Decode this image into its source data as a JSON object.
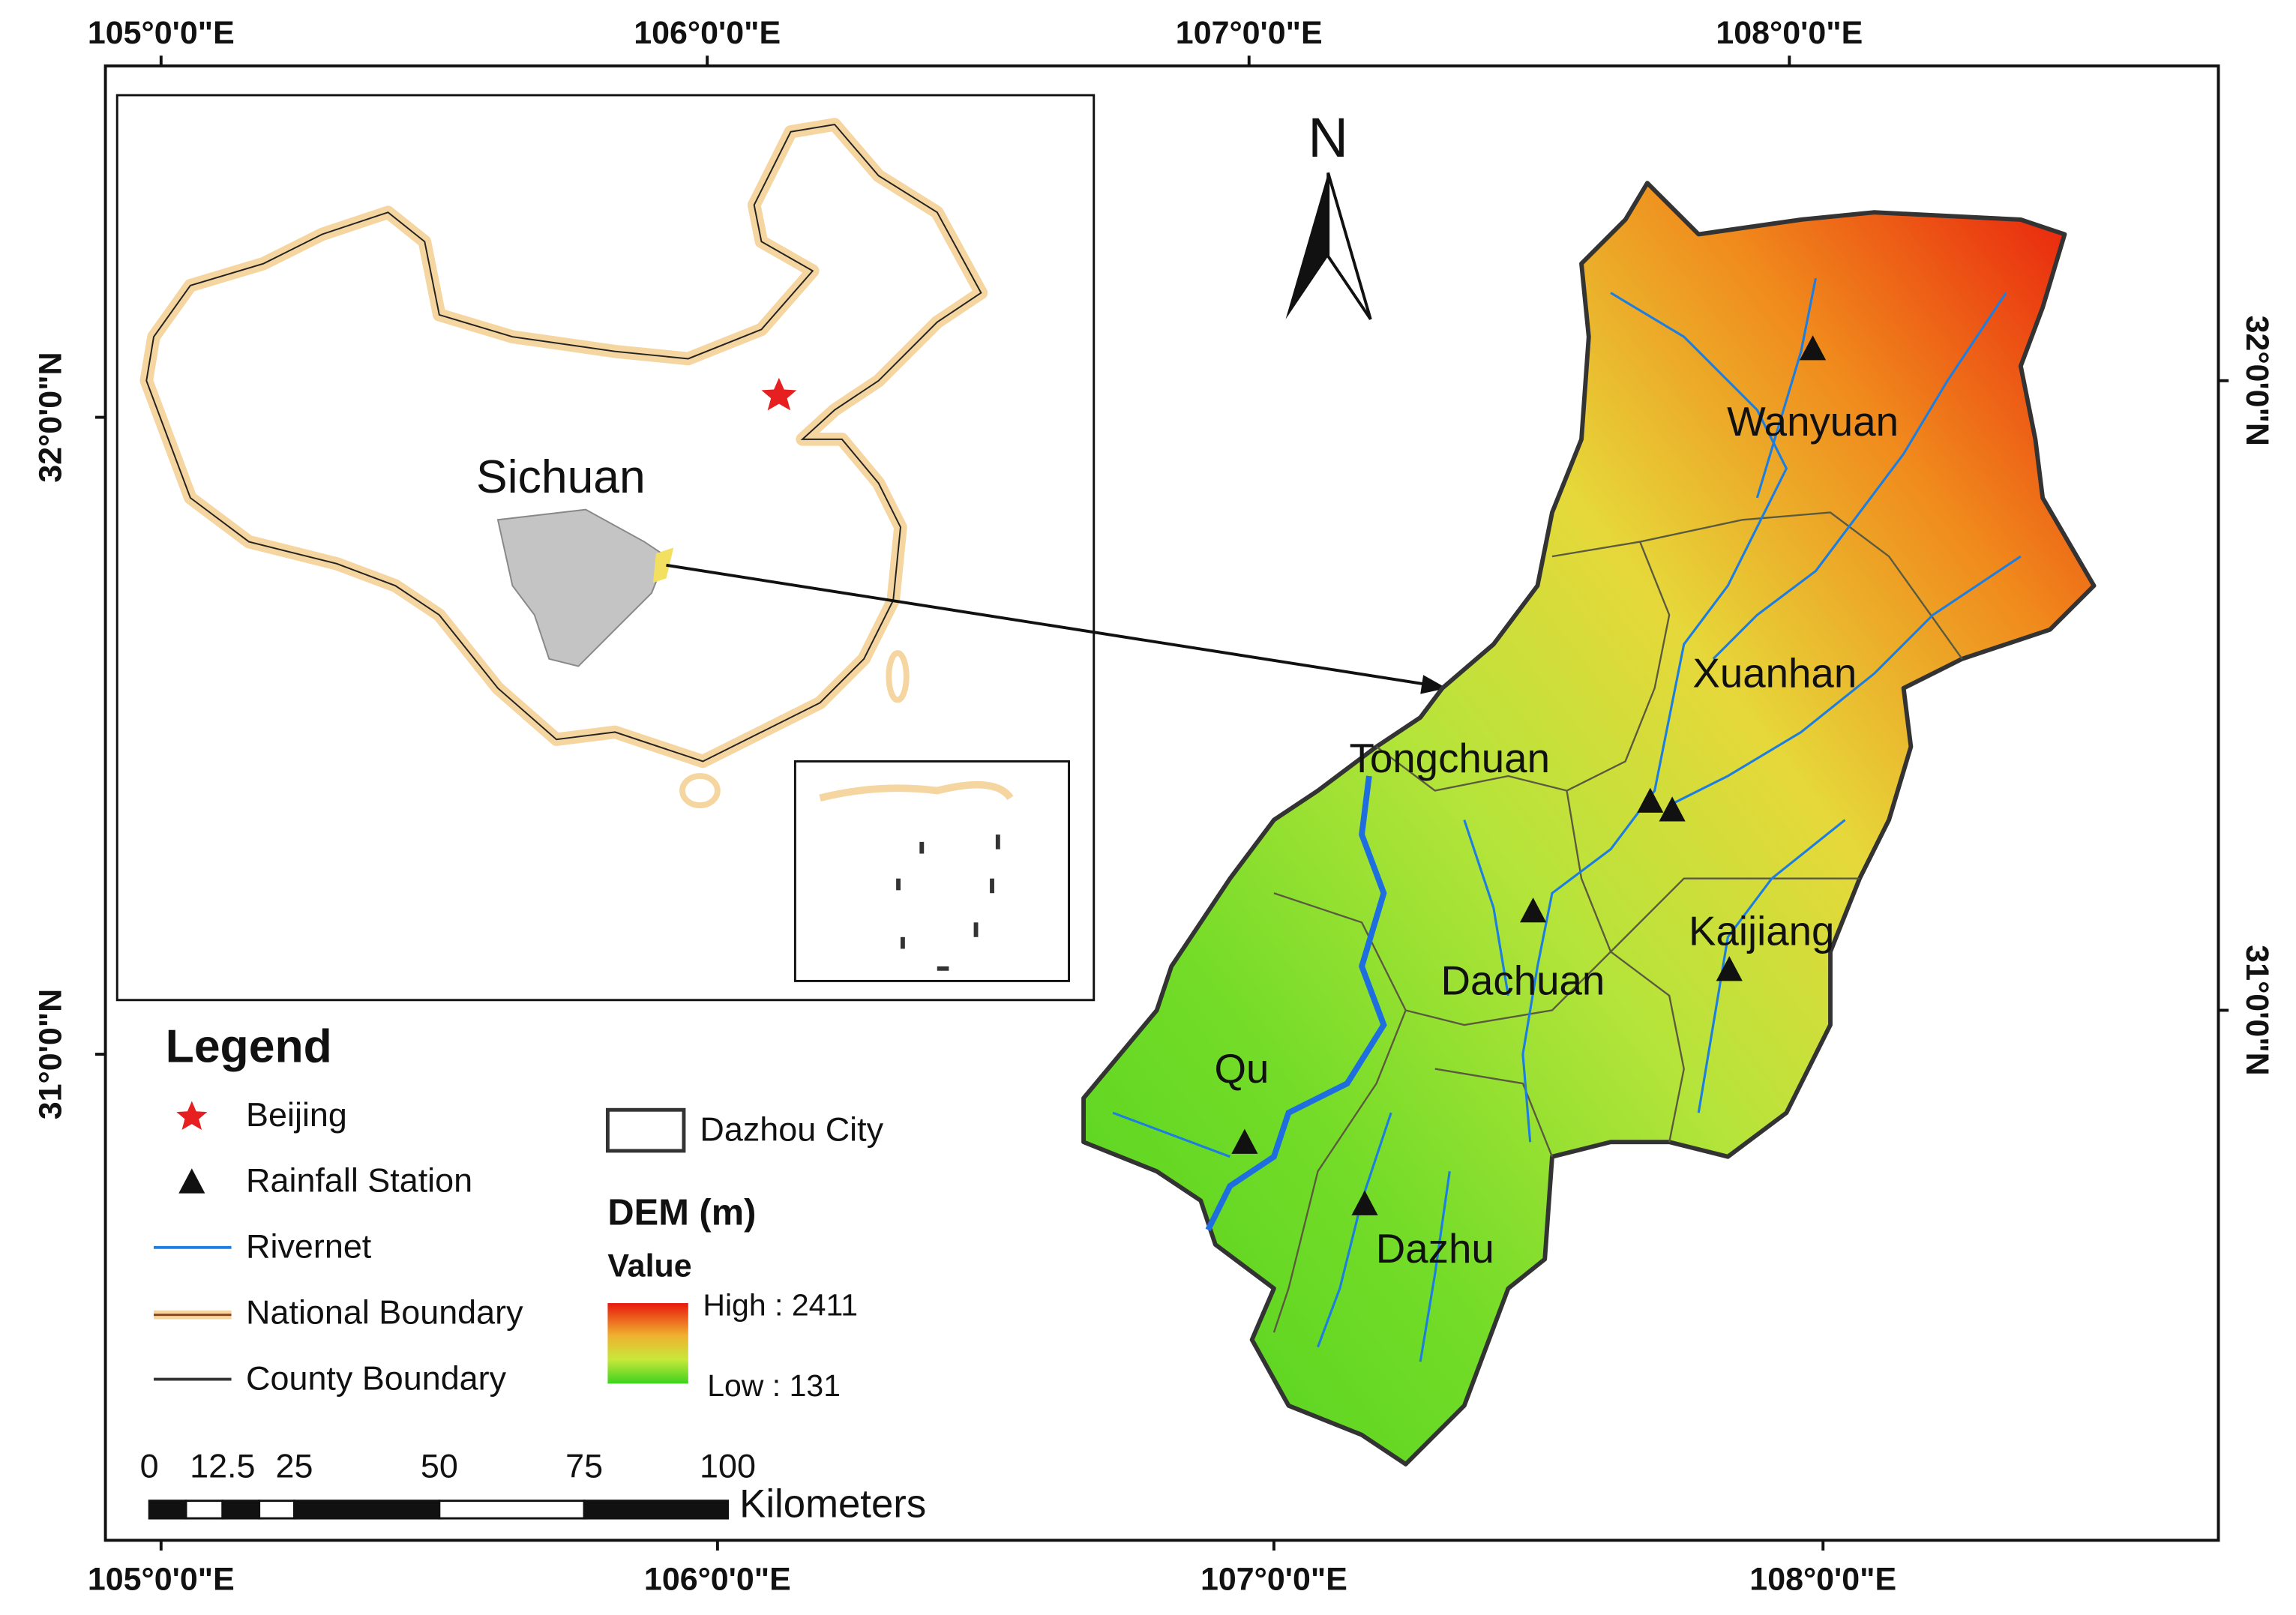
{
  "map": {
    "lon_labels_top": [
      "105°0'0\"E",
      "106°0'0\"E",
      "107°0'0\"E",
      "108°0'0\"E"
    ],
    "lon_labels_bottom": [
      "105°0'0\"E",
      "106°0'0\"E",
      "107°0'0\"E",
      "108°0'0\"E"
    ],
    "lat_labels_left": [
      "32°0'0\"N",
      "31°0'0\"N"
    ],
    "lat_labels_right": [
      "32°0'0\"N",
      "31°0'0\"N"
    ],
    "north": "N",
    "inset_label": "Sichuan",
    "places": [
      "Wanyuan",
      "Xuanhan",
      "Tongchuan",
      "Kaijiang",
      "Dachuan",
      "Qu",
      "Dazhu"
    ]
  },
  "legend": {
    "title": "Legend",
    "items": [
      "Beijing",
      "Rainfall Station",
      "Rivernet",
      "National Boundary",
      "County Boundary"
    ],
    "city": "Dazhou City",
    "dem_title": "DEM (m)",
    "dem_subtitle": "Value",
    "dem_high": "High : 2411",
    "dem_low": "Low : 131"
  },
  "scale_bar": {
    "ticks": [
      "0",
      "12.5",
      "25",
      "50",
      "75",
      "100"
    ],
    "unit": "Kilometers"
  }
}
